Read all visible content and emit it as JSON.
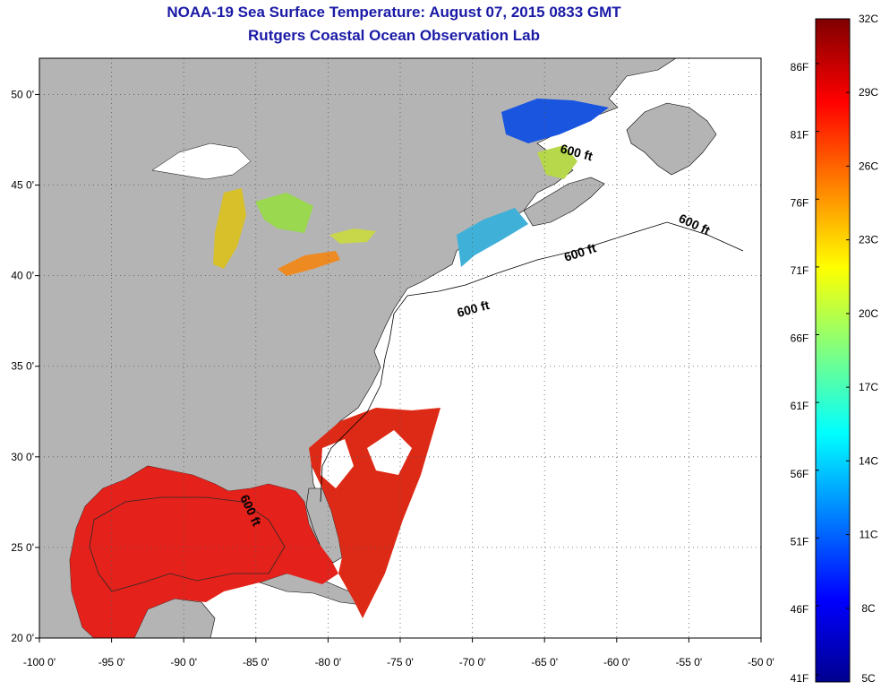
{
  "title_line1": "NOAA-19 Sea Surface Temperature:  August 07, 2015 0833 GMT",
  "title_line2": "Rutgers Coastal Ocean Observation Lab",
  "map": {
    "lon_range": [
      -100,
      -50
    ],
    "lat_range": [
      20,
      52
    ],
    "lon_ticks": [
      {
        "value": -100,
        "label": "-100 0'"
      },
      {
        "value": -95,
        "label": "-95 0'"
      },
      {
        "value": -90,
        "label": "-90 0'"
      },
      {
        "value": -85,
        "label": "-85 0'"
      },
      {
        "value": -80,
        "label": "-80 0'"
      },
      {
        "value": -75,
        "label": "-75 0'"
      },
      {
        "value": -70,
        "label": "-70 0'"
      },
      {
        "value": -65,
        "label": "-65 0'"
      },
      {
        "value": -60,
        "label": "-60 0'"
      },
      {
        "value": -55,
        "label": "-55 0'"
      },
      {
        "value": -50,
        "label": "-50 0'"
      }
    ],
    "lat_ticks": [
      {
        "value": 50,
        "label": "50 0'"
      },
      {
        "value": 45,
        "label": "45 0'"
      },
      {
        "value": 40,
        "label": "40 0'"
      },
      {
        "value": 35,
        "label": "35 0'"
      },
      {
        "value": 30,
        "label": "30 0'"
      },
      {
        "value": 25,
        "label": "25 0'"
      },
      {
        "value": 20,
        "label": "20 0'"
      }
    ],
    "grid": "dotted",
    "land_color": "#b4b4b4",
    "isobath_label": "600 ft"
  },
  "colorbar": {
    "celsius_labels": [
      "32C",
      "29C",
      "26C",
      "23C",
      "20C",
      "17C",
      "14C",
      "11C",
      "8C",
      "5C"
    ],
    "fahrenheit_labels": [
      "86F",
      "81F",
      "76F",
      "71F",
      "66F",
      "61F",
      "56F",
      "51F",
      "46F",
      "41F"
    ],
    "colors": [
      "#00008f",
      "#0000ff",
      "#0080ff",
      "#00ffff",
      "#80ff80",
      "#ffff00",
      "#ff8000",
      "#ff0000",
      "#800000"
    ]
  }
}
